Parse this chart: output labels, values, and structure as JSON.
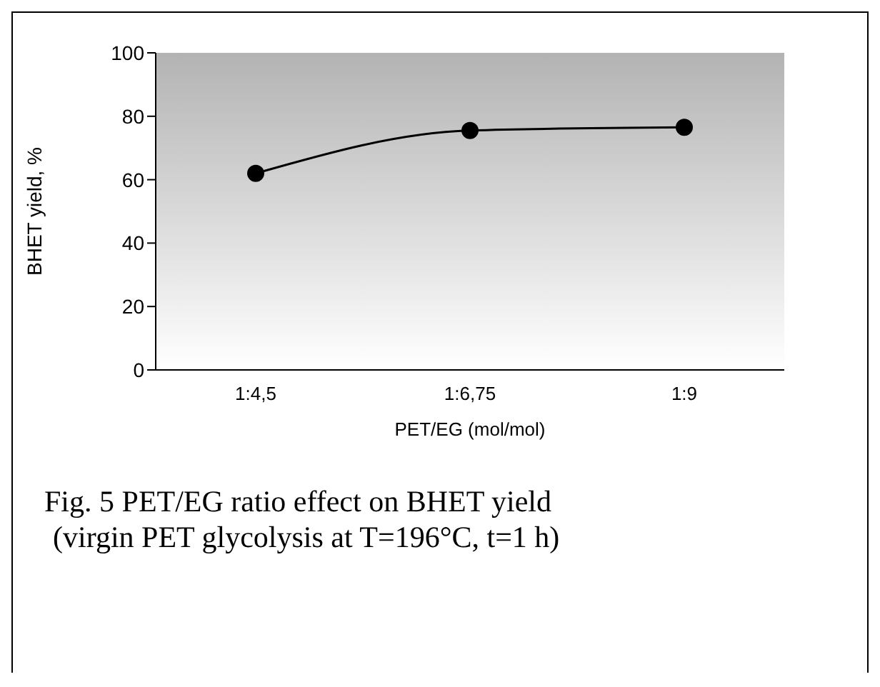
{
  "chart_data": {
    "type": "line",
    "xlabel": "PET/EG (mol/mol)",
    "ylabel": "BHET yield, %",
    "categories": [
      "1:4,5",
      "1:6,75",
      "1:9"
    ],
    "series": [
      {
        "color": "#000000",
        "values": [
          62,
          75.5,
          76.5
        ]
      }
    ],
    "ylim": [
      0,
      100
    ],
    "yticks": [
      0,
      20,
      40,
      60,
      80,
      100
    ],
    "marker": "circle",
    "line_style": "solid",
    "grid": false,
    "legend": false,
    "annotations": [
      "Fig. 5 PET/EG ratio effect on BHET yield",
      "(virgin PET glycolysis at T=196°C, t=1 h)"
    ]
  }
}
